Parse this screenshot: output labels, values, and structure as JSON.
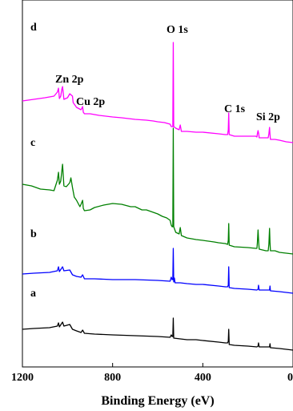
{
  "chart_data": {
    "type": "line",
    "title": "",
    "xlabel": "Binding Energy (eV)",
    "ylabel": "",
    "xlim": [
      1200,
      0
    ],
    "x_reversed": true,
    "xticks": [
      1200,
      800,
      400,
      0
    ],
    "grid": false,
    "legend": "none",
    "annotations": [
      {
        "text": "Zn 2p",
        "x": 1022
      },
      {
        "text": "Cu 2p",
        "x": 933
      },
      {
        "text": "O 1s",
        "x": 531
      },
      {
        "text": "C 1s",
        "x": 285
      },
      {
        "text": "Si 2p",
        "x": 102
      }
    ],
    "series": [
      {
        "name": "a",
        "color": "#000000",
        "points": [
          [
            1200,
            411
          ],
          [
            1150,
            410
          ],
          [
            1080,
            409
          ],
          [
            1045,
            407
          ],
          [
            1040,
            403
          ],
          [
            1036,
            408
          ],
          [
            1022,
            402
          ],
          [
            1016,
            407
          ],
          [
            990,
            405
          ],
          [
            978,
            411
          ],
          [
            960,
            413
          ],
          [
            940,
            415
          ],
          [
            933,
            412
          ],
          [
            925,
            416
          ],
          [
            880,
            417
          ],
          [
            800,
            418
          ],
          [
            700,
            419
          ],
          [
            600,
            420
          ],
          [
            545,
            421
          ],
          [
            540,
            418
          ],
          [
            536,
            420
          ],
          [
            533,
            420
          ],
          [
            531,
            397
          ],
          [
            529,
            422
          ],
          [
            500,
            423
          ],
          [
            470,
            424
          ],
          [
            430,
            424
          ],
          [
            400,
            425
          ],
          [
            330,
            427
          ],
          [
            300,
            428
          ],
          [
            290,
            428
          ],
          [
            287,
            426
          ],
          [
            285,
            411
          ],
          [
            283,
            430
          ],
          [
            260,
            431
          ],
          [
            200,
            432
          ],
          [
            160,
            433
          ],
          [
            155,
            432
          ],
          [
            153,
            428
          ],
          [
            150,
            433
          ],
          [
            120,
            433
          ],
          [
            104,
            433
          ],
          [
            102,
            429
          ],
          [
            100,
            434
          ],
          [
            60,
            435
          ],
          [
            0,
            437
          ]
        ]
      },
      {
        "name": "b",
        "color": "#0000ff",
        "points": [
          [
            1200,
            342
          ],
          [
            1150,
            341
          ],
          [
            1080,
            340
          ],
          [
            1045,
            338
          ],
          [
            1040,
            333
          ],
          [
            1036,
            339
          ],
          [
            1022,
            333
          ],
          [
            1016,
            338
          ],
          [
            990,
            337
          ],
          [
            978,
            343
          ],
          [
            960,
            345
          ],
          [
            940,
            346
          ],
          [
            933,
            343
          ],
          [
            925,
            348
          ],
          [
            880,
            348
          ],
          [
            800,
            349
          ],
          [
            700,
            349
          ],
          [
            600,
            350
          ],
          [
            545,
            351
          ],
          [
            540,
            346
          ],
          [
            536,
            349
          ],
          [
            533,
            349
          ],
          [
            531,
            310
          ],
          [
            529,
            352
          ],
          [
            526,
            347
          ],
          [
            523,
            353
          ],
          [
            500,
            353
          ],
          [
            470,
            354
          ],
          [
            430,
            355
          ],
          [
            400,
            355
          ],
          [
            330,
            357
          ],
          [
            300,
            358
          ],
          [
            290,
            358
          ],
          [
            287,
            356
          ],
          [
            285,
            333
          ],
          [
            283,
            359
          ],
          [
            260,
            360
          ],
          [
            200,
            361
          ],
          [
            160,
            362
          ],
          [
            155,
            361
          ],
          [
            153,
            356
          ],
          [
            150,
            362
          ],
          [
            120,
            362
          ],
          [
            104,
            362
          ],
          [
            102,
            357
          ],
          [
            100,
            363
          ],
          [
            60,
            364
          ],
          [
            0,
            366
          ]
        ]
      },
      {
        "name": "c",
        "color": "#008000",
        "points": [
          [
            1200,
            230
          ],
          [
            1160,
            232
          ],
          [
            1120,
            236
          ],
          [
            1080,
            237
          ],
          [
            1060,
            238
          ],
          [
            1045,
            225
          ],
          [
            1040,
            215
          ],
          [
            1036,
            230
          ],
          [
            1030,
            226
          ],
          [
            1022,
            205
          ],
          [
            1016,
            232
          ],
          [
            1005,
            233
          ],
          [
            990,
            228
          ],
          [
            985,
            222
          ],
          [
            978,
            234
          ],
          [
            970,
            246
          ],
          [
            960,
            250
          ],
          [
            945,
            258
          ],
          [
            940,
            255
          ],
          [
            933,
            250
          ],
          [
            930,
            260
          ],
          [
            925,
            263
          ],
          [
            900,
            262
          ],
          [
            880,
            259
          ],
          [
            840,
            256
          ],
          [
            800,
            254
          ],
          [
            760,
            255
          ],
          [
            720,
            258
          ],
          [
            700,
            258
          ],
          [
            670,
            262
          ],
          [
            650,
            262
          ],
          [
            620,
            265
          ],
          [
            600,
            267
          ],
          [
            580,
            270
          ],
          [
            560,
            272
          ],
          [
            545,
            275
          ],
          [
            540,
            281
          ],
          [
            536,
            283
          ],
          [
            533,
            283
          ],
          [
            531,
            160
          ],
          [
            529,
            283
          ],
          [
            520,
            290
          ],
          [
            505,
            292
          ],
          [
            500,
            284
          ],
          [
            495,
            294
          ],
          [
            470,
            297
          ],
          [
            430,
            299
          ],
          [
            400,
            300
          ],
          [
            350,
            302
          ],
          [
            330,
            303
          ],
          [
            300,
            304
          ],
          [
            290,
            305
          ],
          [
            287,
            300
          ],
          [
            285,
            279
          ],
          [
            283,
            306
          ],
          [
            260,
            308
          ],
          [
            200,
            309
          ],
          [
            165,
            310
          ],
          [
            160,
            310
          ],
          [
            158,
            303
          ],
          [
            155,
            287
          ],
          [
            152,
            303
          ],
          [
            150,
            311
          ],
          [
            120,
            313
          ],
          [
            110,
            313
          ],
          [
            107,
            305
          ],
          [
            104,
            285
          ],
          [
            102,
            303
          ],
          [
            100,
            313
          ],
          [
            80,
            313
          ],
          [
            60,
            315
          ],
          [
            0,
            317
          ]
        ]
      },
      {
        "name": "d",
        "color": "#ff00ff",
        "points": [
          [
            1200,
            126
          ],
          [
            1150,
            124
          ],
          [
            1100,
            122
          ],
          [
            1060,
            120
          ],
          [
            1045,
            115
          ],
          [
            1040,
            110
          ],
          [
            1036,
            123
          ],
          [
            1030,
            120
          ],
          [
            1025,
            111
          ],
          [
            1022,
            108
          ],
          [
            1016,
            124
          ],
          [
            1000,
            122
          ],
          [
            990,
            117
          ],
          [
            978,
            120
          ],
          [
            975,
            128
          ],
          [
            960,
            134
          ],
          [
            940,
            137
          ],
          [
            933,
            133
          ],
          [
            930,
            140
          ],
          [
            925,
            142
          ],
          [
            900,
            142
          ],
          [
            860,
            144
          ],
          [
            800,
            146
          ],
          [
            760,
            147
          ],
          [
            700,
            149
          ],
          [
            650,
            150
          ],
          [
            620,
            151
          ],
          [
            600,
            152
          ],
          [
            570,
            153
          ],
          [
            545,
            155
          ],
          [
            540,
            158
          ],
          [
            536,
            158
          ],
          [
            533,
            158
          ],
          [
            531,
            53
          ],
          [
            529,
            158
          ],
          [
            520,
            160
          ],
          [
            505,
            162
          ],
          [
            500,
            156
          ],
          [
            495,
            164
          ],
          [
            470,
            164
          ],
          [
            430,
            165
          ],
          [
            400,
            165
          ],
          [
            330,
            167
          ],
          [
            300,
            168
          ],
          [
            290,
            168
          ],
          [
            287,
            162
          ],
          [
            285,
            141
          ],
          [
            283,
            168
          ],
          [
            260,
            170
          ],
          [
            200,
            170
          ],
          [
            165,
            170
          ],
          [
            160,
            171
          ],
          [
            158,
            167
          ],
          [
            155,
            163
          ],
          [
            152,
            167
          ],
          [
            150,
            172
          ],
          [
            120,
            172
          ],
          [
            110,
            172
          ],
          [
            107,
            167
          ],
          [
            104,
            159
          ],
          [
            102,
            168
          ],
          [
            100,
            174
          ],
          [
            80,
            174
          ],
          [
            60,
            175
          ],
          [
            30,
            177
          ],
          [
            0,
            178
          ]
        ]
      }
    ]
  }
}
